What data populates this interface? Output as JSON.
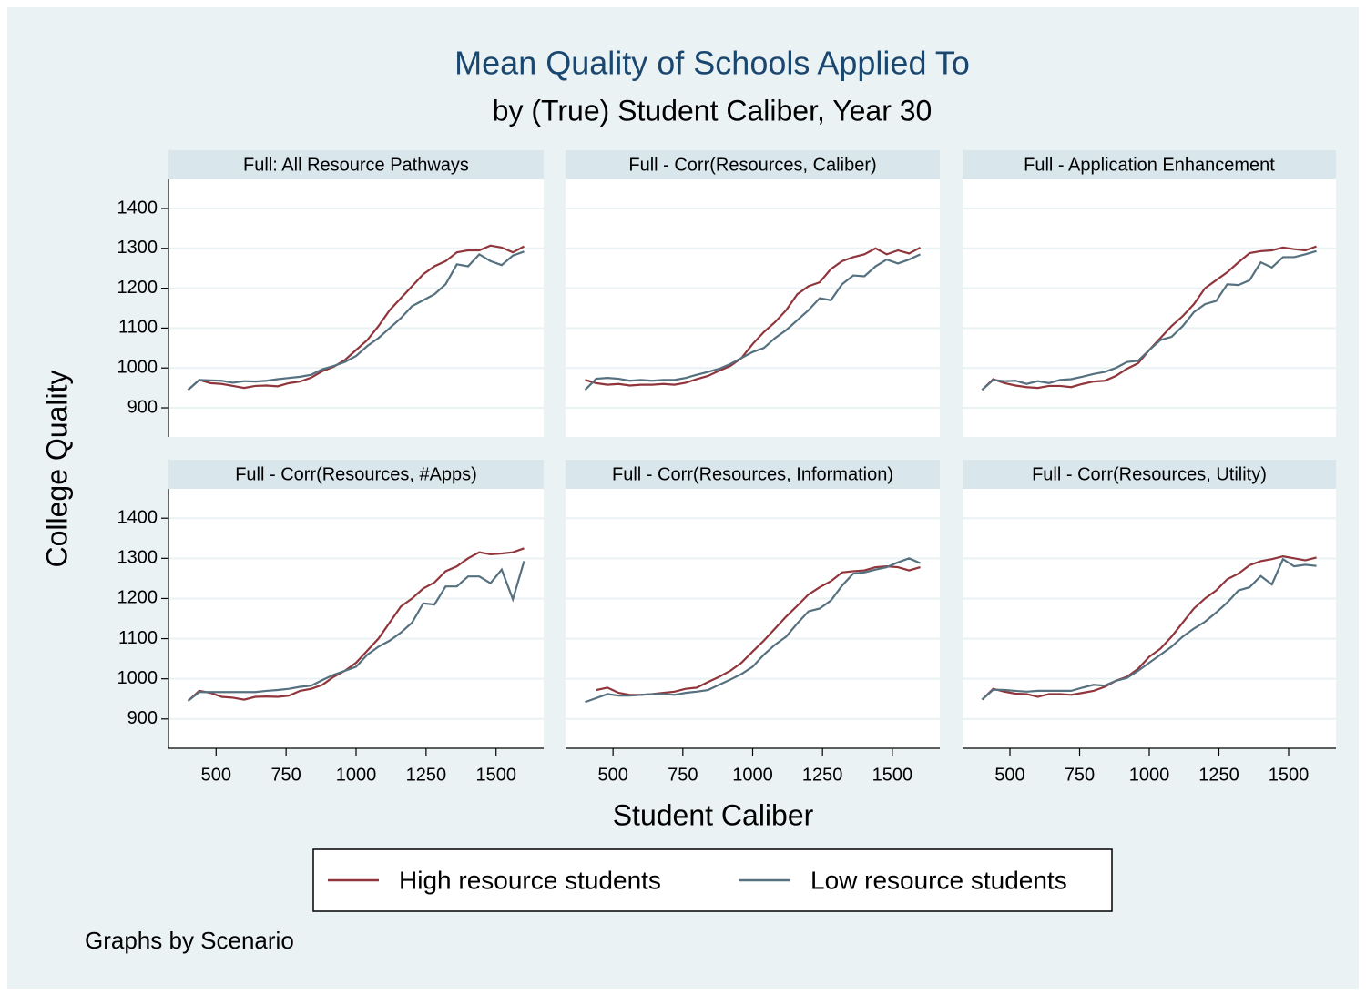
{
  "chart_data": {
    "type": "line",
    "title": "Mean Quality of Schools Applied To",
    "subtitle": "by (True) Student Caliber, Year 30",
    "x_label": "Student Caliber",
    "y_label": "College Quality",
    "note": "Graphs by Scenario",
    "xlim": [
      330,
      1670
    ],
    "ylim": [
      827,
      1473
    ],
    "xticks": [
      500,
      750,
      1000,
      1250,
      1500
    ],
    "yticks": [
      900,
      1000,
      1100,
      1200,
      1300,
      1400
    ],
    "grid": true,
    "x": [
      400,
      440,
      480,
      520,
      560,
      600,
      640,
      680,
      720,
      760,
      800,
      840,
      880,
      920,
      960,
      1000,
      1040,
      1080,
      1120,
      1160,
      1200,
      1240,
      1280,
      1320,
      1360,
      1400,
      1440,
      1480,
      1520,
      1560,
      1600
    ],
    "series": [
      {
        "name": "High resource students",
        "color": "#90353b"
      },
      {
        "name": "Low resource students",
        "color": "#55707f"
      }
    ],
    "panels": [
      {
        "title": "Full: All Resource Pathways",
        "series": [
          {
            "values": [
              945,
              970,
              962,
              960,
              955,
              950,
              955,
              956,
              954,
              962,
              966,
              976,
              992,
              1003,
              1020,
              1045,
              1070,
              1105,
              1145,
              1175,
              1205,
              1235,
              1255,
              1268,
              1290,
              1295,
              1295,
              1307,
              1302,
              1290,
              1305
            ]
          },
          {
            "values": [
              945,
              970,
              969,
              968,
              963,
              967,
              966,
              968,
              972,
              975,
              978,
              983,
              997,
              1005,
              1015,
              1030,
              1055,
              1075,
              1100,
              1125,
              1155,
              1170,
              1185,
              1210,
              1260,
              1255,
              1285,
              1268,
              1258,
              1282,
              1292
            ]
          }
        ]
      },
      {
        "title": "Full - Corr(Resources, Caliber)",
        "series": [
          {
            "values": [
              970,
              962,
              958,
              960,
              956,
              958,
              958,
              960,
              958,
              963,
              972,
              980,
              993,
              1005,
              1025,
              1060,
              1090,
              1115,
              1145,
              1185,
              1205,
              1215,
              1248,
              1268,
              1278,
              1285,
              1300,
              1285,
              1295,
              1287,
              1302
            ]
          },
          {
            "values": [
              945,
              973,
              975,
              973,
              968,
              970,
              968,
              970,
              970,
              975,
              983,
              990,
              998,
              1010,
              1025,
              1040,
              1050,
              1075,
              1095,
              1120,
              1145,
              1175,
              1170,
              1210,
              1232,
              1230,
              1255,
              1272,
              1262,
              1272,
              1285
            ]
          }
        ]
      },
      {
        "title": "Full - Application Enhancement",
        "series": [
          {
            "values": [
              945,
              972,
              962,
              956,
              952,
              950,
              955,
              955,
              952,
              960,
              966,
              968,
              980,
              998,
              1012,
              1045,
              1075,
              1105,
              1130,
              1160,
              1200,
              1220,
              1240,
              1265,
              1288,
              1293,
              1295,
              1302,
              1298,
              1295,
              1305
            ]
          },
          {
            "values": [
              945,
              970,
              967,
              968,
              960,
              967,
              962,
              970,
              972,
              978,
              985,
              990,
              1000,
              1015,
              1018,
              1045,
              1070,
              1078,
              1105,
              1140,
              1160,
              1168,
              1210,
              1208,
              1220,
              1265,
              1252,
              1278,
              1278,
              1285,
              1293
            ]
          }
        ]
      },
      {
        "title": "Full - Corr(Resources, #Apps)",
        "series": [
          {
            "values": [
              945,
              970,
              965,
              955,
              953,
              948,
              955,
              956,
              955,
              958,
              970,
              975,
              985,
              1005,
              1020,
              1040,
              1070,
              1100,
              1140,
              1180,
              1200,
              1225,
              1240,
              1268,
              1280,
              1300,
              1315,
              1310,
              1312,
              1315,
              1325
            ]
          },
          {
            "values": [
              945,
              967,
              967,
              967,
              967,
              967,
              967,
              970,
              972,
              975,
              980,
              983,
              997,
              1010,
              1020,
              1030,
              1060,
              1080,
              1095,
              1115,
              1140,
              1188,
              1185,
              1230,
              1230,
              1255,
              1255,
              1238,
              1272,
              1198,
              1293
            ]
          }
        ]
      },
      {
        "title": "Full - Corr(Resources, Information)",
        "series": [
          {
            "values": [
              null,
              972,
              978,
              965,
              960,
              960,
              962,
              965,
              968,
              975,
              978,
              992,
              1005,
              1020,
              1040,
              1068,
              1095,
              1125,
              1155,
              1182,
              1210,
              1228,
              1243,
              1265,
              1268,
              1270,
              1278,
              1280,
              1278,
              1270,
              1278
            ]
          },
          {
            "values": [
              942,
              952,
              962,
              958,
              958,
              960,
              962,
              962,
              960,
              965,
              968,
              972,
              985,
              998,
              1012,
              1030,
              1060,
              1085,
              1105,
              1138,
              1168,
              1175,
              1195,
              1232,
              1262,
              1265,
              1272,
              1278,
              1290,
              1300,
              1288
            ]
          }
        ]
      },
      {
        "title": "Full - Corr(Resources, Utility)",
        "series": [
          {
            "values": [
              948,
              975,
              968,
              963,
              962,
              955,
              962,
              962,
              960,
              965,
              970,
              980,
              995,
              1005,
              1025,
              1055,
              1075,
              1105,
              1140,
              1175,
              1200,
              1220,
              1248,
              1262,
              1283,
              1293,
              1298,
              1305,
              1300,
              1295,
              1302
            ]
          },
          {
            "values": [
              948,
              973,
              972,
              970,
              968,
              970,
              970,
              970,
              970,
              978,
              985,
              983,
              995,
              1002,
              1020,
              1040,
              1060,
              1080,
              1105,
              1125,
              1142,
              1165,
              1190,
              1220,
              1228,
              1256,
              1235,
              1298,
              1280,
              1284,
              1281
            ]
          }
        ]
      }
    ]
  }
}
